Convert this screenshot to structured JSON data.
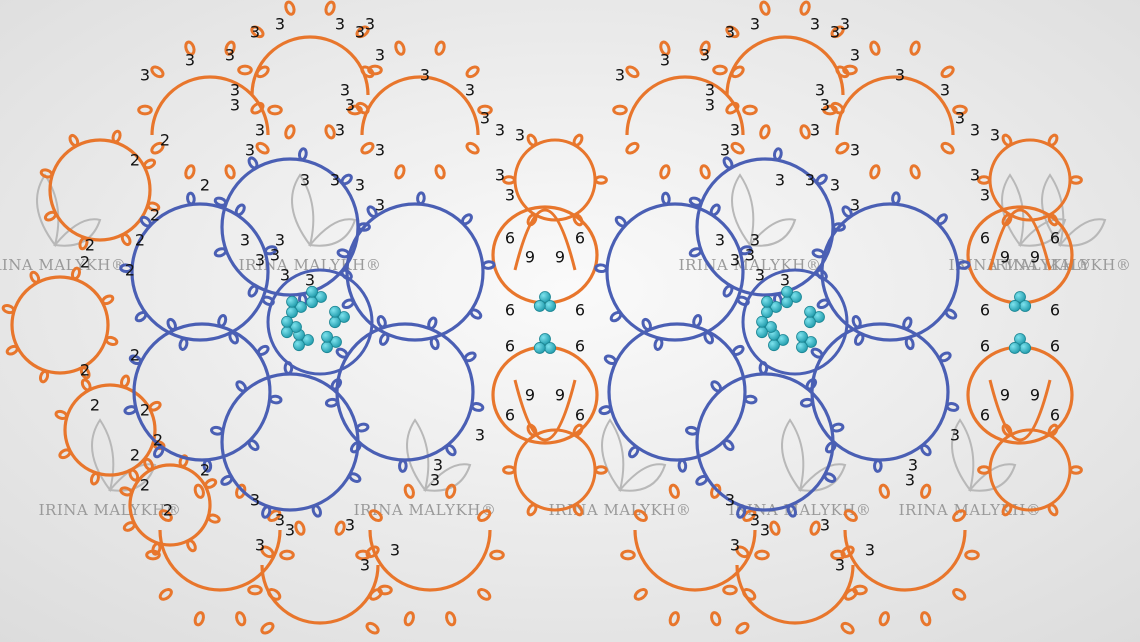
{
  "watermark": {
    "text": "IRINA MALYKH",
    "mark": "®"
  },
  "colors": {
    "chain": "#e8762c",
    "ring": "#4a5fb4",
    "bead": "#2bb3c4",
    "bead_dark": "#1a8593",
    "background": "#ededed",
    "text": "#111111"
  },
  "stitch_counts": {
    "chain_arc": "3",
    "side_chain": "2",
    "large_ring": "6",
    "small_ring": "9"
  },
  "motifs": [
    "left-motif",
    "right-motif"
  ],
  "icon": "leaf-watermark-icon"
}
